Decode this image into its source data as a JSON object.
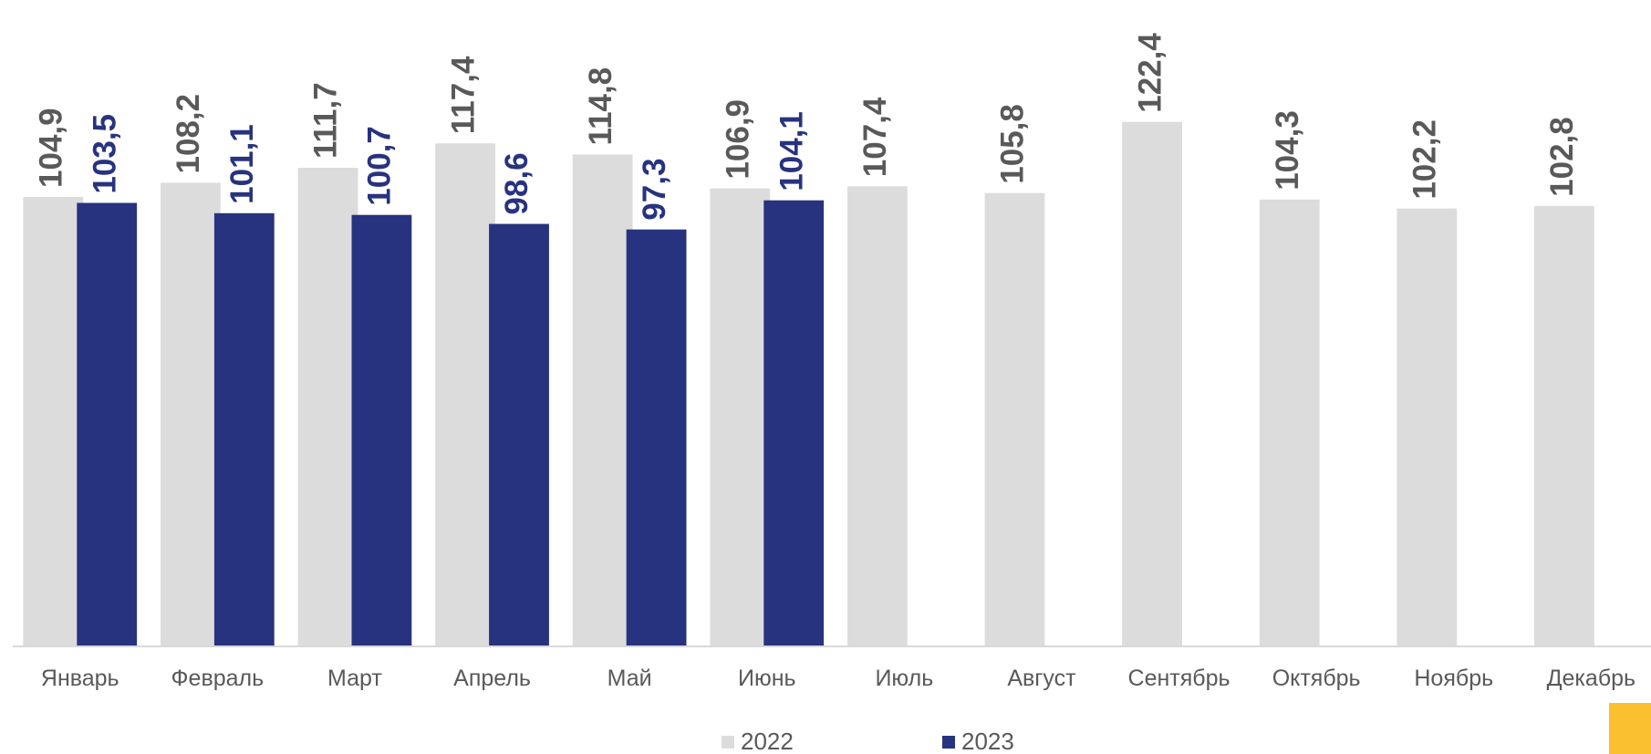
{
  "chart_data": {
    "type": "bar",
    "categories": [
      "Январь",
      "Февраль",
      "Март",
      "Апрель",
      "Май",
      "Июнь",
      "Июль",
      "Август",
      "Сентябрь",
      "Октябрь",
      "Ноябрь",
      "Декабрь"
    ],
    "series": [
      {
        "name": "2022",
        "color": "#dcdcdc",
        "label_color": "#595959",
        "values": [
          104.9,
          108.2,
          111.7,
          117.4,
          114.8,
          106.9,
          107.4,
          105.8,
          122.4,
          104.3,
          102.2,
          102.8
        ],
        "value_labels": [
          "104,9",
          "108,2",
          "111,7",
          "117,4",
          "114,8",
          "106,9",
          "107,4",
          "105,8",
          "122,4",
          "104,3",
          "102,2",
          "102,8"
        ]
      },
      {
        "name": "2023",
        "color": "#27337f",
        "label_color": "#27337f",
        "values": [
          103.5,
          101.1,
          100.7,
          98.6,
          97.3,
          104.1,
          null,
          null,
          null,
          null,
          null,
          null
        ],
        "value_labels": [
          "103,5",
          "101,1",
          "100,7",
          "98,6",
          "97,3",
          "104,1",
          null,
          null,
          null,
          null,
          null,
          null
        ]
      }
    ],
    "ylim": [
      0,
      150
    ],
    "legend": "bottom"
  }
}
